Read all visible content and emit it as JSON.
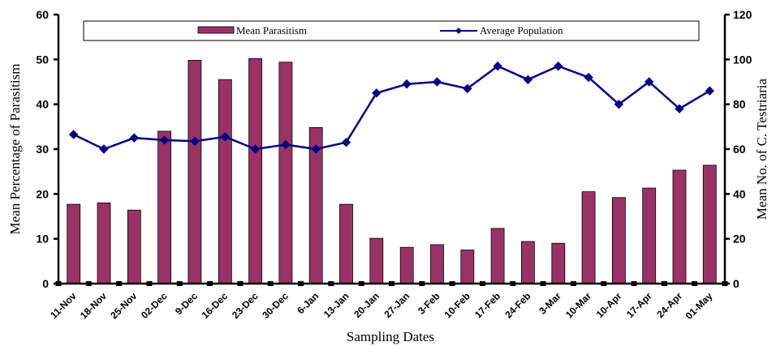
{
  "chart_data": {
    "type": "bar",
    "categories": [
      "11-Nov",
      "18-Nov",
      "25-Nov",
      "02-Dec",
      "9-Dec",
      "16-Dec",
      "23-Dec",
      "30-Dec",
      "6-Jan",
      "13-Jan",
      "20-Jan",
      "27-Jan",
      "3-Feb",
      "10-Feb",
      "17-Feb",
      "24-Feb",
      "3-Mar",
      "10-Mar",
      "10-Apr",
      "17-Apr",
      "24-Apr",
      "01-May"
    ],
    "xlabel": "Sampling Dates",
    "ylabel_left": "Mean Percentage of Parasitism",
    "ylabel_right": "Mean No. of C. Testriaria",
    "ylim_left": [
      0,
      60
    ],
    "ylim_right": [
      0,
      120
    ],
    "yticks_left": [
      "0",
      "10",
      "20",
      "30",
      "40",
      "50",
      "60"
    ],
    "yticks_right": [
      "0",
      "20",
      "40",
      "60",
      "80",
      "100",
      "120"
    ],
    "grid": false,
    "legend_position": "top",
    "series": [
      {
        "name": "Mean Parasitism",
        "type": "bar",
        "axis": "left",
        "color": "#993366",
        "values": [
          17.7,
          18.0,
          16.4,
          34.0,
          49.8,
          45.5,
          50.2,
          49.4,
          34.8,
          17.7,
          10.1,
          8.1,
          8.7,
          7.5,
          12.3,
          9.4,
          9.0,
          20.5,
          19.2,
          21.3,
          25.3,
          26.4
        ]
      },
      {
        "name": "Average Population",
        "type": "line",
        "axis": "right",
        "color": "#000080",
        "marker": "diamond",
        "values": [
          66.5,
          60.0,
          65.0,
          64.0,
          63.5,
          65.5,
          60.0,
          62.0,
          60.0,
          63.0,
          85.0,
          89.0,
          90.0,
          87.0,
          97.0,
          91.0,
          97.0,
          92.0,
          80.0,
          90.0,
          78.0,
          86.0
        ]
      }
    ]
  }
}
